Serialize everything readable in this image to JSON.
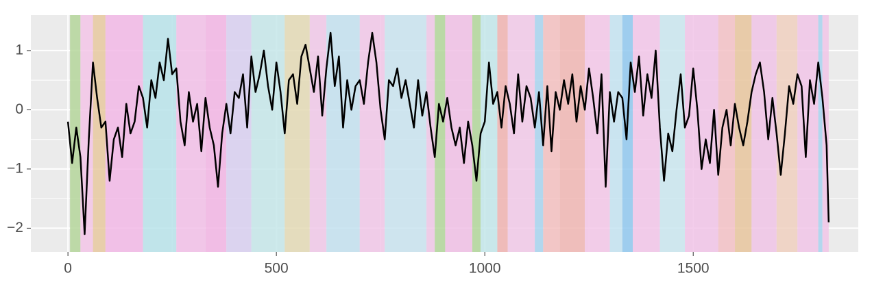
{
  "chart_data": {
    "type": "line",
    "x": [
      0,
      10,
      20,
      30,
      40,
      50,
      60,
      70,
      80,
      90,
      100,
      110,
      120,
      130,
      140,
      150,
      160,
      170,
      180,
      190,
      200,
      210,
      220,
      230,
      240,
      250,
      260,
      270,
      280,
      290,
      300,
      310,
      320,
      330,
      340,
      350,
      360,
      370,
      380,
      390,
      400,
      410,
      420,
      430,
      440,
      450,
      460,
      470,
      480,
      490,
      500,
      510,
      520,
      530,
      540,
      550,
      560,
      570,
      580,
      590,
      600,
      610,
      620,
      630,
      640,
      650,
      660,
      670,
      680,
      690,
      700,
      710,
      720,
      730,
      740,
      750,
      760,
      770,
      780,
      790,
      800,
      810,
      820,
      830,
      840,
      850,
      860,
      870,
      880,
      890,
      900,
      910,
      920,
      930,
      940,
      950,
      960,
      970,
      980,
      990,
      1000,
      1010,
      1020,
      1030,
      1040,
      1050,
      1060,
      1070,
      1080,
      1090,
      1100,
      1110,
      1120,
      1130,
      1140,
      1150,
      1160,
      1170,
      1180,
      1190,
      1200,
      1210,
      1220,
      1230,
      1240,
      1250,
      1260,
      1270,
      1280,
      1290,
      1300,
      1310,
      1320,
      1330,
      1340,
      1350,
      1360,
      1370,
      1380,
      1390,
      1400,
      1410,
      1420,
      1430,
      1440,
      1450,
      1460,
      1470,
      1480,
      1490,
      1500,
      1510,
      1520,
      1530,
      1540,
      1550,
      1560,
      1570,
      1580,
      1590,
      1600,
      1610,
      1620,
      1630,
      1640,
      1650,
      1660,
      1670,
      1680,
      1690,
      1700,
      1710,
      1720,
      1730,
      1740,
      1750,
      1760,
      1770,
      1780,
      1790,
      1800,
      1810,
      1820,
      1825
    ],
    "series": [
      {
        "color": "#000000",
        "values": [
          -0.2,
          -0.9,
          -0.3,
          -0.8,
          -2.1,
          -0.5,
          0.8,
          0.2,
          -0.3,
          -0.2,
          -1.2,
          -0.5,
          -0.3,
          -0.8,
          0.1,
          -0.4,
          -0.2,
          0.4,
          0.2,
          -0.3,
          0.5,
          0.2,
          0.8,
          0.5,
          1.2,
          0.6,
          0.7,
          -0.2,
          -0.6,
          0.3,
          -0.2,
          0.1,
          -0.7,
          0.2,
          -0.3,
          -0.6,
          -1.3,
          -0.4,
          0.1,
          -0.4,
          0.3,
          0.2,
          0.6,
          -0.3,
          0.9,
          0.3,
          0.6,
          1.0,
          0.4,
          0.0,
          0.8,
          0.3,
          -0.4,
          0.5,
          0.6,
          0.1,
          0.9,
          1.1,
          0.7,
          0.3,
          0.9,
          -0.1,
          0.7,
          1.3,
          0.4,
          0.9,
          -0.3,
          0.5,
          0.0,
          0.4,
          0.5,
          0.1,
          0.8,
          1.3,
          0.8,
          0.0,
          -0.5,
          0.5,
          0.4,
          0.7,
          0.2,
          0.5,
          0.1,
          -0.3,
          0.5,
          -0.1,
          0.3,
          -0.3,
          -0.8,
          0.1,
          -0.2,
          0.2,
          -0.3,
          -0.6,
          -0.3,
          -0.9,
          -0.2,
          -0.6,
          -1.2,
          -0.4,
          -0.2,
          0.8,
          0.1,
          0.3,
          -0.3,
          0.4,
          0.1,
          -0.4,
          0.6,
          -0.2,
          0.4,
          0.2,
          -0.3,
          0.3,
          -0.6,
          0.4,
          -0.7,
          0.3,
          0.0,
          0.5,
          0.1,
          0.6,
          -0.2,
          0.4,
          0.0,
          0.7,
          0.2,
          -0.4,
          0.6,
          -1.3,
          0.3,
          -0.2,
          0.3,
          0.2,
          -0.5,
          0.8,
          0.3,
          0.9,
          -0.1,
          0.6,
          0.2,
          1.0,
          -0.3,
          -1.2,
          -0.4,
          -0.7,
          0.0,
          0.6,
          -0.3,
          -0.1,
          0.7,
          0.0,
          -1.0,
          -0.5,
          -0.9,
          0.0,
          -1.1,
          -0.3,
          0.0,
          -0.6,
          0.1,
          -0.3,
          -0.6,
          -0.2,
          0.3,
          0.6,
          0.8,
          0.3,
          -0.5,
          0.2,
          -0.4,
          -1.1,
          -0.4,
          0.4,
          0.1,
          0.6,
          0.4,
          -0.8,
          0.5,
          0.1,
          0.8,
          0.2,
          -0.6,
          -1.9
        ]
      }
    ],
    "bands": [
      {
        "start": 5,
        "end": 30,
        "color": "#b5d69b"
      },
      {
        "start": 30,
        "end": 60,
        "color": "#f3c6e8"
      },
      {
        "start": 60,
        "end": 90,
        "color": "#e8c9a0"
      },
      {
        "start": 90,
        "end": 180,
        "color": "#f2b8e6"
      },
      {
        "start": 180,
        "end": 260,
        "color": "#b9e3ea"
      },
      {
        "start": 260,
        "end": 330,
        "color": "#f2c0e8"
      },
      {
        "start": 330,
        "end": 380,
        "color": "#f2b5e4"
      },
      {
        "start": 380,
        "end": 440,
        "color": "#d8cff0"
      },
      {
        "start": 440,
        "end": 520,
        "color": "#c5e6e9"
      },
      {
        "start": 520,
        "end": 580,
        "color": "#e3d9b5"
      },
      {
        "start": 580,
        "end": 620,
        "color": "#f0c8e8"
      },
      {
        "start": 620,
        "end": 700,
        "color": "#c3e1ee"
      },
      {
        "start": 700,
        "end": 760,
        "color": "#f1c7e7"
      },
      {
        "start": 760,
        "end": 860,
        "color": "#c9e3ef"
      },
      {
        "start": 860,
        "end": 880,
        "color": "#efc7e6"
      },
      {
        "start": 880,
        "end": 905,
        "color": "#b2d69a"
      },
      {
        "start": 905,
        "end": 970,
        "color": "#f0c0e5"
      },
      {
        "start": 970,
        "end": 990,
        "color": "#b2d69a"
      },
      {
        "start": 990,
        "end": 1030,
        "color": "#c3e6ea"
      },
      {
        "start": 1030,
        "end": 1055,
        "color": "#f0b3b0"
      },
      {
        "start": 1055,
        "end": 1120,
        "color": "#f1c9e7"
      },
      {
        "start": 1120,
        "end": 1140,
        "color": "#a8d4ef"
      },
      {
        "start": 1140,
        "end": 1180,
        "color": "#f3c0c0"
      },
      {
        "start": 1180,
        "end": 1240,
        "color": "#f0b6b3"
      },
      {
        "start": 1240,
        "end": 1300,
        "color": "#f3c7e8"
      },
      {
        "start": 1300,
        "end": 1330,
        "color": "#c4e3f1"
      },
      {
        "start": 1330,
        "end": 1355,
        "color": "#90c8ee"
      },
      {
        "start": 1355,
        "end": 1420,
        "color": "#f2c6e9"
      },
      {
        "start": 1420,
        "end": 1480,
        "color": "#cae6ee"
      },
      {
        "start": 1480,
        "end": 1560,
        "color": "#f1c4e7"
      },
      {
        "start": 1560,
        "end": 1600,
        "color": "#f3c1c6"
      },
      {
        "start": 1600,
        "end": 1640,
        "color": "#e8c69e"
      },
      {
        "start": 1640,
        "end": 1700,
        "color": "#f0c4e6"
      },
      {
        "start": 1700,
        "end": 1750,
        "color": "#f0d0c0"
      },
      {
        "start": 1750,
        "end": 1800,
        "color": "#f1c5e7"
      },
      {
        "start": 1800,
        "end": 1810,
        "color": "#a8d4ef"
      },
      {
        "start": 1810,
        "end": 1825,
        "color": "#f1c5e7"
      }
    ],
    "xlim": [
      -89,
      1896
    ],
    "ylim": [
      -2.4,
      1.6
    ],
    "xticks": [
      0,
      500,
      1000,
      1500
    ],
    "yticks": [
      {
        "value": -2,
        "label": "−2"
      },
      {
        "value": -1,
        "label": "−1"
      },
      0,
      1
    ],
    "grid": true,
    "background": "#ebebeb"
  }
}
